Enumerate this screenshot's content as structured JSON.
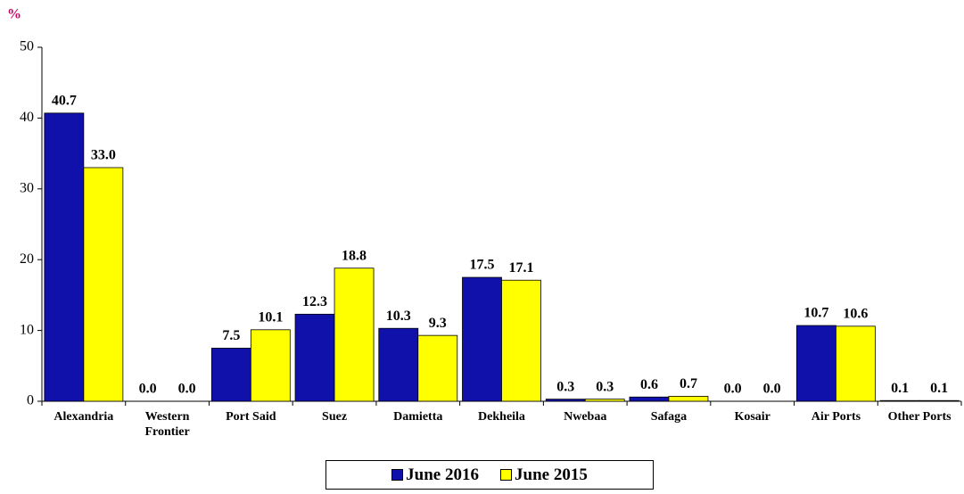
{
  "chart_data": {
    "type": "bar",
    "y_label": "%",
    "categories": [
      "Alexandria",
      "Western Frontier",
      "Port Said",
      "Suez",
      "Damietta",
      "Dekheila",
      "Nwebaa",
      "Safaga",
      "Kosair",
      "Air Ports",
      "Other Ports"
    ],
    "series": [
      {
        "name": "June 2016",
        "color": "#1010aa",
        "values": [
          40.7,
          0.0,
          7.5,
          12.3,
          10.3,
          17.5,
          0.3,
          0.6,
          0.0,
          10.7,
          0.1
        ],
        "value_labels": [
          "40.7",
          "0.0",
          "7.5",
          "12.3",
          "10.3",
          "17.5",
          "0.3",
          "0.6",
          "0.0",
          "10.7",
          "0.1"
        ]
      },
      {
        "name": "June 2015",
        "color": "#ffff00",
        "values": [
          33.0,
          0.0,
          10.1,
          18.8,
          9.3,
          17.1,
          0.3,
          0.7,
          0.0,
          10.6,
          0.1
        ],
        "value_labels": [
          "33.0",
          "0.0",
          "10.1",
          "18.8",
          "9.3",
          "17.1",
          "0.3",
          "0.7",
          "0.0",
          "10.6",
          "0.1"
        ]
      }
    ],
    "ylim": [
      0,
      50
    ],
    "yticks": [
      0,
      10,
      20,
      30,
      40,
      50
    ],
    "grid": false,
    "legend": "bottom"
  }
}
